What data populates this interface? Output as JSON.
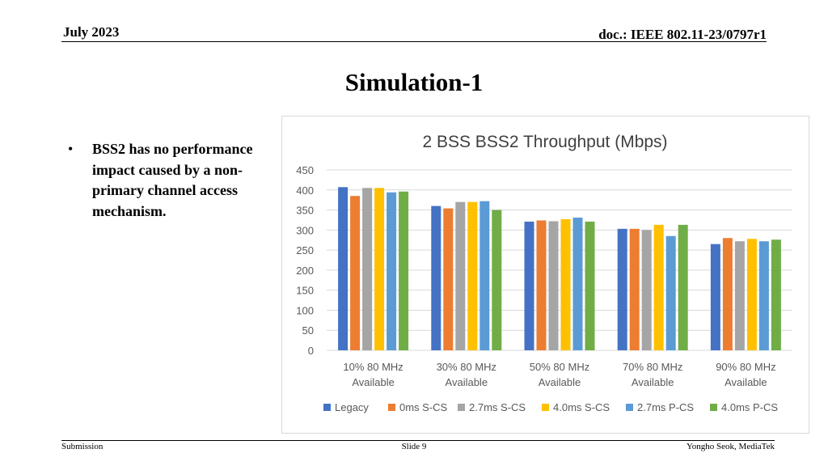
{
  "header": {
    "date": "July 2023",
    "doc_id": "doc.: IEEE 802.11-23/0797r1"
  },
  "slide": {
    "title": "Simulation-1",
    "bullets": [
      "BSS2 has no performance impact caused by a non-primary channel access mechanism."
    ]
  },
  "footer": {
    "left": "Submission",
    "center": "Slide 9",
    "right": "Yongho Seok, MediaTek"
  },
  "chart_data": {
    "type": "bar",
    "title": "2 BSS BSS2 Throughput (Mbps)",
    "categories": [
      [
        "10% 80 MHz",
        "Available"
      ],
      [
        "30% 80 MHz",
        "Available"
      ],
      [
        "50% 80 MHz",
        "Available"
      ],
      [
        "70% 80 MHz",
        "Available"
      ],
      [
        "90% 80 MHz",
        "Available"
      ]
    ],
    "ylim": [
      0,
      450
    ],
    "yticks": [
      0,
      50,
      100,
      150,
      200,
      250,
      300,
      350,
      400,
      450
    ],
    "grid": true,
    "legend_position": "bottom",
    "series": [
      {
        "name": "Legacy",
        "color": "#4472C4",
        "values": [
          407,
          360,
          321,
          303,
          265
        ]
      },
      {
        "name": "0ms S-CS",
        "color": "#ED7D31",
        "values": [
          385,
          354,
          324,
          303,
          280
        ]
      },
      {
        "name": "2.7ms S-CS",
        "color": "#A5A5A5",
        "values": [
          405,
          370,
          322,
          300,
          272
        ]
      },
      {
        "name": "4.0ms S-CS",
        "color": "#FFC000",
        "values": [
          405,
          370,
          327,
          313,
          278
        ]
      },
      {
        "name": "2.7ms P-CS",
        "color": "#5B9BD5",
        "values": [
          394,
          372,
          331,
          285,
          272
        ]
      },
      {
        "name": "4.0ms P-CS",
        "color": "#70AD47",
        "values": [
          396,
          350,
          321,
          313,
          276
        ]
      }
    ]
  }
}
